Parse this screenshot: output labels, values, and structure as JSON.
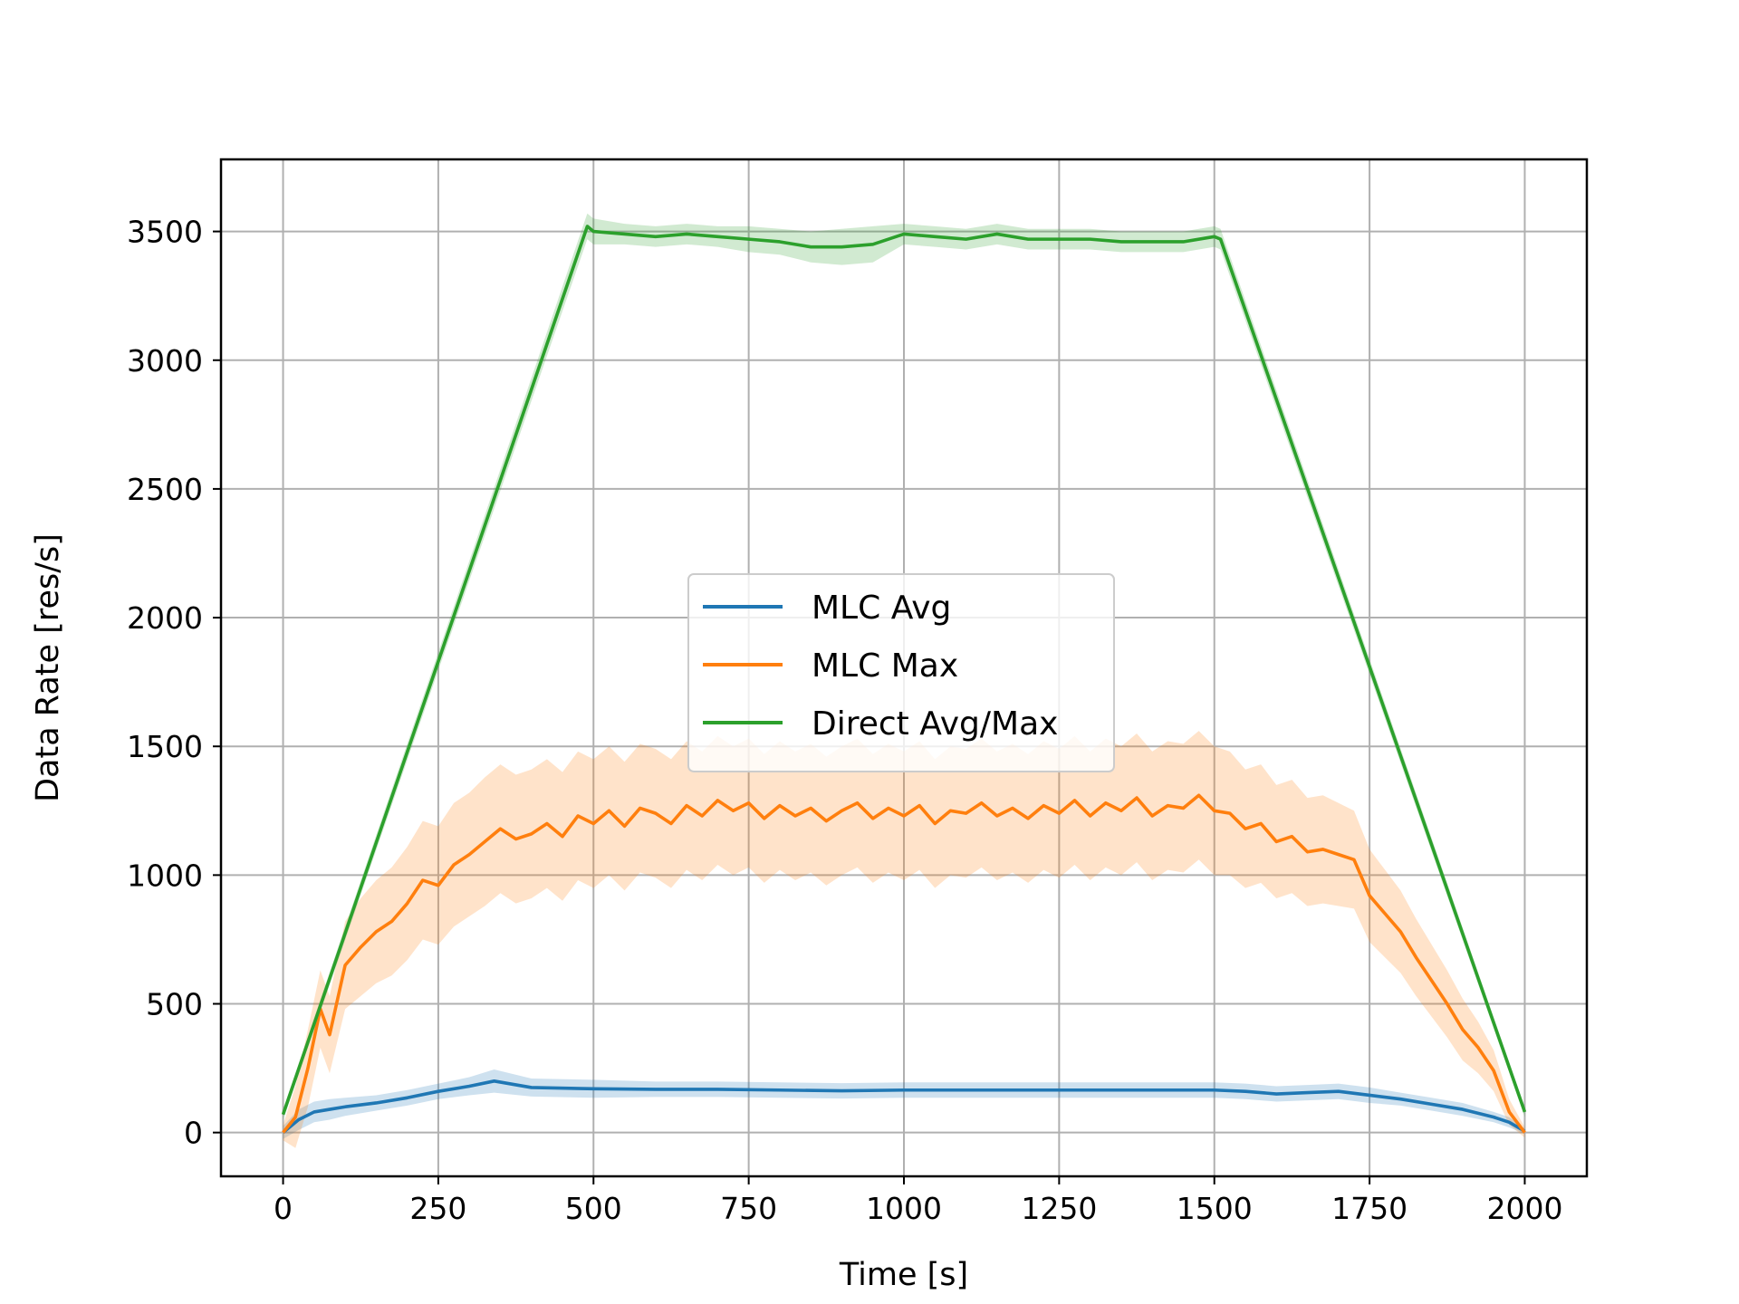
{
  "chart_data": {
    "type": "line",
    "title": "",
    "xlabel": "Time [s]",
    "ylabel": "Data Rate [res/s]",
    "xlim": [
      -100,
      2100
    ],
    "ylim": [
      -170,
      3780
    ],
    "xticks": [
      0,
      250,
      500,
      750,
      1000,
      1250,
      1500,
      1750,
      2000
    ],
    "yticks": [
      0,
      500,
      1000,
      1500,
      2000,
      2500,
      3000,
      3500
    ],
    "grid": true,
    "legend_position": "center",
    "series": [
      {
        "name": "MLC Avg",
        "color": "#1f77b4",
        "x": [
          0,
          25,
          50,
          75,
          100,
          150,
          200,
          250,
          300,
          340,
          400,
          500,
          600,
          700,
          800,
          900,
          1000,
          1100,
          1200,
          1300,
          1400,
          1500,
          1550,
          1600,
          1650,
          1700,
          1750,
          1800,
          1850,
          1900,
          1950,
          1975,
          2000
        ],
        "y": [
          0,
          50,
          80,
          90,
          100,
          115,
          135,
          160,
          180,
          200,
          175,
          170,
          168,
          168,
          165,
          162,
          165,
          165,
          165,
          165,
          165,
          165,
          160,
          150,
          155,
          160,
          145,
          130,
          110,
          90,
          60,
          40,
          5
        ],
        "band": [
          25,
          40,
          40,
          40,
          35,
          30,
          30,
          30,
          35,
          45,
          35,
          35,
          30,
          30,
          30,
          30,
          30,
          30,
          30,
          30,
          30,
          30,
          30,
          30,
          30,
          30,
          30,
          25,
          25,
          25,
          20,
          20,
          10
        ]
      },
      {
        "name": "MLC Max",
        "color": "#ff7f0e",
        "x": [
          0,
          20,
          40,
          60,
          75,
          100,
          125,
          150,
          175,
          200,
          225,
          250,
          275,
          300,
          325,
          350,
          375,
          400,
          425,
          450,
          475,
          500,
          525,
          550,
          575,
          600,
          625,
          650,
          675,
          700,
          725,
          750,
          775,
          800,
          825,
          850,
          875,
          900,
          925,
          950,
          975,
          1000,
          1025,
          1050,
          1075,
          1100,
          1125,
          1150,
          1175,
          1200,
          1225,
          1250,
          1275,
          1300,
          1325,
          1350,
          1375,
          1400,
          1425,
          1450,
          1475,
          1500,
          1525,
          1550,
          1575,
          1600,
          1625,
          1650,
          1675,
          1700,
          1725,
          1750,
          1775,
          1800,
          1825,
          1850,
          1875,
          1900,
          1925,
          1950,
          1975,
          2000
        ],
        "y": [
          0,
          60,
          250,
          480,
          380,
          650,
          720,
          780,
          820,
          890,
          980,
          960,
          1040,
          1080,
          1130,
          1180,
          1140,
          1160,
          1200,
          1150,
          1230,
          1200,
          1250,
          1190,
          1260,
          1240,
          1200,
          1270,
          1230,
          1290,
          1250,
          1280,
          1220,
          1270,
          1230,
          1260,
          1210,
          1250,
          1280,
          1220,
          1260,
          1230,
          1270,
          1200,
          1250,
          1240,
          1280,
          1230,
          1260,
          1220,
          1270,
          1240,
          1290,
          1230,
          1280,
          1250,
          1300,
          1230,
          1270,
          1260,
          1310,
          1250,
          1240,
          1180,
          1200,
          1130,
          1150,
          1090,
          1100,
          1080,
          1060,
          920,
          850,
          780,
          680,
          590,
          500,
          400,
          330,
          240,
          80,
          0
        ],
        "band": [
          30,
          120,
          150,
          150,
          150,
          170,
          190,
          200,
          210,
          220,
          230,
          230,
          240,
          240,
          250,
          250,
          250,
          250,
          250,
          250,
          250,
          250,
          250,
          250,
          250,
          250,
          250,
          250,
          250,
          250,
          250,
          250,
          250,
          250,
          250,
          250,
          250,
          250,
          250,
          250,
          250,
          250,
          250,
          250,
          250,
          250,
          250,
          250,
          250,
          250,
          250,
          250,
          250,
          250,
          250,
          250,
          250,
          250,
          250,
          250,
          250,
          250,
          240,
          230,
          230,
          220,
          220,
          210,
          210,
          200,
          190,
          180,
          170,
          160,
          150,
          140,
          130,
          120,
          100,
          80,
          50,
          20
        ]
      },
      {
        "name": "Direct Avg/Max",
        "color": "#2ca02c",
        "x": [
          0,
          490,
          500,
          550,
          600,
          650,
          700,
          750,
          800,
          850,
          900,
          950,
          1000,
          1050,
          1100,
          1150,
          1200,
          1250,
          1300,
          1350,
          1400,
          1450,
          1500,
          1510,
          2000
        ],
        "y": [
          70,
          3520,
          3500,
          3490,
          3480,
          3490,
          3480,
          3470,
          3460,
          3440,
          3440,
          3450,
          3490,
          3480,
          3470,
          3490,
          3470,
          3470,
          3470,
          3460,
          3460,
          3460,
          3480,
          3470,
          80
        ],
        "band": [
          20,
          50,
          50,
          40,
          40,
          40,
          40,
          50,
          50,
          60,
          70,
          70,
          40,
          40,
          40,
          40,
          40,
          40,
          40,
          40,
          40,
          40,
          40,
          40,
          20
        ]
      }
    ]
  }
}
